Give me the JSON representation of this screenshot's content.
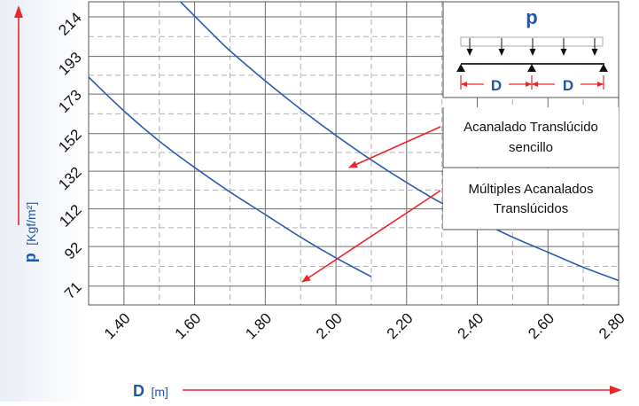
{
  "chart_data": {
    "type": "line",
    "title": "",
    "xlabel": "D",
    "xlabel_unit": "[m]",
    "ylabel": "p",
    "ylabel_unit": "[Kgf/m²]",
    "xlim": [
      1.3,
      2.8
    ],
    "ylim": [
      61,
      222
    ],
    "x_ticks": [
      "1.40",
      "1.60",
      "1.80",
      "2.00",
      "2.20",
      "2.40",
      "2.60",
      "2.80"
    ],
    "x_tick_values": [
      1.4,
      1.6,
      1.8,
      2.0,
      2.2,
      2.4,
      2.6,
      2.8
    ],
    "y_ticks": [
      "214",
      "193",
      "173",
      "152",
      "132",
      "112",
      "92",
      "71"
    ],
    "y_tick_values": [
      214,
      193,
      173,
      152,
      132,
      112,
      92,
      71
    ],
    "grid": true,
    "series": [
      {
        "name": "Acanalado Translúcido sencillo",
        "color": "#2a5cb0",
        "x": [
          1.56,
          1.65,
          1.7,
          1.8,
          1.9,
          2.0,
          2.1,
          2.2,
          2.3,
          2.4,
          2.5,
          2.6,
          2.7,
          2.8
        ],
        "y": [
          222,
          205,
          196,
          180,
          165,
          151,
          138,
          126,
          115,
          106,
          97,
          89,
          81,
          74
        ]
      },
      {
        "name": "Múltiples Acanalados Translúcidos",
        "color": "#2a5cb0",
        "x": [
          1.3,
          1.4,
          1.5,
          1.6,
          1.7,
          1.8,
          1.9,
          2.0,
          2.1
        ],
        "y": [
          182,
          164,
          148,
          134,
          121,
          109,
          97,
          86,
          76
        ]
      }
    ],
    "annotations": [
      {
        "text_lines": [
          "Acanalado Translúcido",
          "sencillo"
        ],
        "points_to_series": 0
      },
      {
        "text_lines": [
          "Múltiples Acanalados",
          "Translúcidos"
        ],
        "points_to_series": 1
      }
    ],
    "inset": {
      "load_label": "p",
      "span_labels": [
        "D",
        "D"
      ]
    }
  },
  "colors": {
    "curve": "#2a5cb0",
    "arrow": "#e8262c",
    "axis_label": "#1f56a8",
    "grid_major": "#6a6a6a",
    "grid_minor": "#b0b0b0"
  }
}
